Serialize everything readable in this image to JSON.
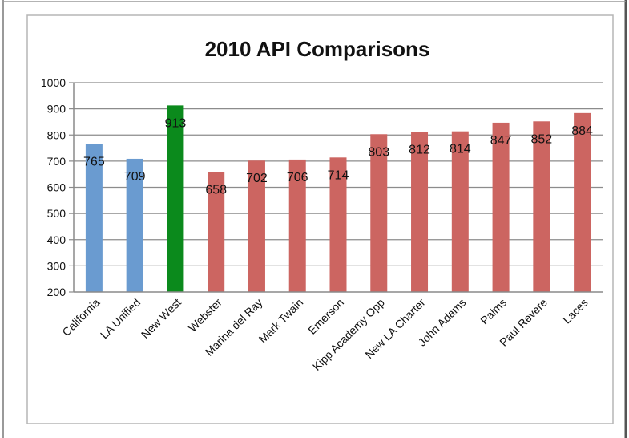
{
  "chart_data": {
    "type": "bar",
    "title": "2010 API Comparisons",
    "xlabel": "",
    "ylabel": "",
    "ylim": [
      200,
      1000
    ],
    "yticks": [
      200,
      300,
      400,
      500,
      600,
      700,
      800,
      900,
      1000
    ],
    "grid": true,
    "legend": "none",
    "categories": [
      "California",
      "LA Unified",
      "New West",
      "Webster",
      "Marina del Ray",
      "Mark Twain",
      "Emerson",
      "Kipp Academy Opp",
      "New LA Charter",
      "John Adams",
      "Palms",
      "Paul Revere",
      "Laces"
    ],
    "values": [
      765,
      709,
      913,
      658,
      702,
      706,
      714,
      803,
      812,
      814,
      847,
      852,
      884
    ],
    "data_labels": [
      "765",
      "709",
      "913",
      "658",
      "702",
      "706",
      "714",
      "803",
      "812",
      "814",
      "847",
      "852",
      "884"
    ],
    "bar_colors": [
      "#6a9bd0",
      "#6a9bd0",
      "#0b8a1c",
      "#cc6561",
      "#cc6561",
      "#cc6561",
      "#cc6561",
      "#cc6561",
      "#cc6561",
      "#cc6561",
      "#cc6561",
      "#cc6561",
      "#cc6561"
    ]
  }
}
